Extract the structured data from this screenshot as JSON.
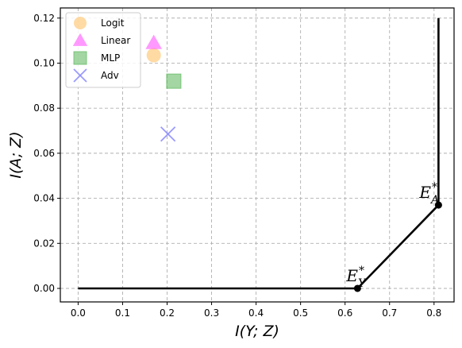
{
  "chart_data": {
    "type": "scatter",
    "title": "",
    "xlabel": "I(Y; Z)",
    "ylabel": "I(A; Z)",
    "xlim": [
      -0.04,
      0.845
    ],
    "ylim": [
      -0.006,
      0.1245
    ],
    "grid": true,
    "legend_position": "top-left",
    "x_ticks": [
      0.0,
      0.1,
      0.2,
      0.3,
      0.4,
      0.5,
      0.6,
      0.7,
      0.8
    ],
    "y_ticks": [
      0.0,
      0.02,
      0.04,
      0.06,
      0.08,
      0.1,
      0.12
    ],
    "x_tick_labels": [
      "0.0",
      "0.1",
      "0.2",
      "0.3",
      "0.4",
      "0.5",
      "0.6",
      "0.7",
      "0.8"
    ],
    "y_tick_labels": [
      "0.00",
      "0.02",
      "0.04",
      "0.06",
      "0.08",
      "0.10",
      "0.12"
    ],
    "series": [
      {
        "name": "Logit",
        "marker": "circle",
        "color": "#FFC266",
        "x": [
          0.17
        ],
        "y": [
          0.1035
        ]
      },
      {
        "name": "Linear",
        "marker": "triangle",
        "color": "#FF55FF",
        "x": [
          0.17
        ],
        "y": [
          0.109
        ]
      },
      {
        "name": "MLP",
        "marker": "square",
        "color": "#66BB66",
        "x": [
          0.215
        ],
        "y": [
          0.092
        ]
      },
      {
        "name": "Adv",
        "marker": "x",
        "color": "#8888FF",
        "x": [
          0.202
        ],
        "y": [
          0.0685
        ]
      }
    ],
    "frontier": {
      "color": "#000000",
      "points": [
        [
          0.0,
          0.0
        ],
        [
          0.628,
          0.0
        ],
        [
          0.81,
          0.037
        ],
        [
          0.81,
          0.12
        ]
      ],
      "markers": [
        [
          0.628,
          0.0
        ],
        [
          0.81,
          0.037
        ]
      ]
    },
    "annotations": [
      {
        "main": "E",
        "sup": "*",
        "sub": "Y",
        "x": 0.628,
        "y": 0.0
      },
      {
        "main": "E",
        "sup": "*",
        "sub": "A",
        "x": 0.81,
        "y": 0.037
      }
    ]
  }
}
